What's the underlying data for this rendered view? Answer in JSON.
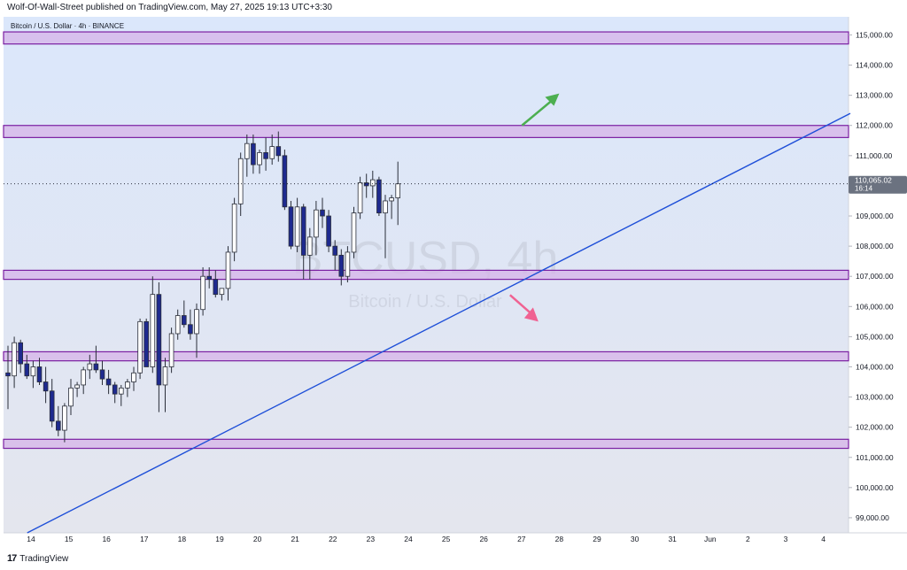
{
  "header": {
    "published_text": "Wolf-Of-Wall-Street published on TradingView.com, May 27, 2025 19:13 UTC+3:30"
  },
  "footer": {
    "logo_glyph": "17",
    "brand": "TradingView"
  },
  "colors": {
    "background_top": "#dbe7fb",
    "background_bottom": "#e4e6ee",
    "bull_body": "#ffffff",
    "bear_body": "#1e2a8f",
    "wick": "#2a2e39",
    "zone_fill": "#d6b3e8",
    "zone_border": "#7b1fa2",
    "trendline": "#1e4fd8",
    "arrow_up": "#4caf50",
    "arrow_down": "#f06292",
    "last_price_bg": "#6b7280"
  },
  "chart_data": {
    "type": "candlestick",
    "symbol_label": "Bitcoin / U.S. Dollar · 4h · BINANCE",
    "watermark_symbol": "BTCUSD, 4h",
    "watermark_name": "Bitcoin / U.S. Dollar",
    "ylim": [
      98500,
      115600
    ],
    "x_axis_ticks": [
      "14",
      "15",
      "16",
      "17",
      "18",
      "19",
      "20",
      "21",
      "22",
      "23",
      "24",
      "25",
      "26",
      "27",
      "28",
      "29",
      "30",
      "31",
      "Jun",
      "2",
      "3",
      "4"
    ],
    "y_axis_ticks": [
      "99,000.00",
      "100,000.00",
      "101,000.00",
      "102,000.00",
      "103,000.00",
      "104,000.00",
      "105,000.00",
      "106,000.00",
      "107,000.00",
      "108,000.00",
      "109,000.00",
      "110,000.00",
      "111,000.00",
      "112,000.00",
      "113,000.00",
      "114,000.00",
      "115,000.00"
    ],
    "last_price": {
      "value": 110065.02,
      "label": "110,065.02",
      "countdown": "16:14"
    },
    "zones": [
      {
        "low": 114700,
        "high": 115100
      },
      {
        "low": 111600,
        "high": 112000
      },
      {
        "low": 106900,
        "high": 107200
      },
      {
        "low": 104200,
        "high": 104500
      },
      {
        "low": 101300,
        "high": 101600
      }
    ],
    "trendline": {
      "start": {
        "x": "13.9",
        "y": 98500
      },
      "end": {
        "x": "4.8",
        "y": 112400
      }
    },
    "arrows": [
      {
        "direction": "up",
        "at_x": "28",
        "at_y": 113000
      },
      {
        "direction": "down",
        "at_x": "27.4",
        "at_y": 105500
      }
    ],
    "candles": [
      [
        103800,
        104700,
        102600,
        103700
      ],
      [
        103700,
        105000,
        103300,
        104800
      ],
      [
        104800,
        104900,
        103800,
        104100
      ],
      [
        104100,
        104400,
        103600,
        103700
      ],
      [
        103700,
        104200,
        103300,
        104000
      ],
      [
        104000,
        104300,
        103400,
        103500
      ],
      [
        103500,
        104000,
        102800,
        103200
      ],
      [
        103200,
        103600,
        102000,
        102200
      ],
      [
        102200,
        102700,
        101700,
        101900
      ],
      [
        101900,
        102800,
        101500,
        102700
      ],
      [
        102700,
        103600,
        102400,
        103300
      ],
      [
        103300,
        103500,
        103000,
        103400
      ],
      [
        103400,
        104000,
        103100,
        103900
      ],
      [
        103900,
        104400,
        103600,
        104100
      ],
      [
        104100,
        104700,
        103800,
        103900
      ],
      [
        103900,
        104200,
        103400,
        103600
      ],
      [
        103600,
        103900,
        103100,
        103400
      ],
      [
        103400,
        103500,
        102800,
        103100
      ],
      [
        103100,
        103400,
        102700,
        103300
      ],
      [
        103300,
        103600,
        103000,
        103500
      ],
      [
        103500,
        104000,
        103200,
        103800
      ],
      [
        103800,
        105600,
        103600,
        105500
      ],
      [
        105500,
        105600,
        104000,
        104000
      ],
      [
        104000,
        107000,
        103800,
        106400
      ],
      [
        106400,
        106800,
        102500,
        103400
      ],
      [
        103400,
        104300,
        102500,
        104000
      ],
      [
        104000,
        105300,
        103800,
        105100
      ],
      [
        105100,
        105900,
        104900,
        105700
      ],
      [
        105700,
        106200,
        105300,
        105400
      ],
      [
        105400,
        105900,
        104900,
        105100
      ],
      [
        105100,
        106100,
        104300,
        105900
      ],
      [
        105900,
        107300,
        105700,
        107000
      ],
      [
        107000,
        107300,
        106600,
        106900
      ],
      [
        106900,
        107200,
        106300,
        106400
      ],
      [
        106400,
        106600,
        106200,
        106600
      ],
      [
        106600,
        108000,
        106200,
        107800
      ],
      [
        107800,
        109600,
        107500,
        109400
      ],
      [
        109400,
        111100,
        109000,
        110900
      ],
      [
        110900,
        111700,
        110300,
        111400
      ],
      [
        111400,
        111700,
        110400,
        110700
      ],
      [
        110700,
        111200,
        110400,
        111100
      ],
      [
        111100,
        111600,
        110500,
        110900
      ],
      [
        110900,
        111700,
        110700,
        111300
      ],
      [
        111300,
        111800,
        110800,
        111000
      ],
      [
        111000,
        111200,
        109200,
        109300
      ],
      [
        109300,
        109500,
        107900,
        108000
      ],
      [
        108000,
        109600,
        107800,
        109300
      ],
      [
        109300,
        109400,
        106900,
        107700
      ],
      [
        107700,
        108600,
        106900,
        108300
      ],
      [
        108300,
        109500,
        107700,
        109200
      ],
      [
        109200,
        109600,
        108600,
        109000
      ],
      [
        109000,
        109200,
        107800,
        108000
      ],
      [
        108000,
        108200,
        107200,
        107700
      ],
      [
        107700,
        107900,
        106700,
        107000
      ],
      [
        107000,
        108000,
        106800,
        107800
      ],
      [
        107800,
        109300,
        107600,
        109100
      ],
      [
        109100,
        110300,
        108900,
        110100
      ],
      [
        110100,
        110400,
        109600,
        110000
      ],
      [
        110000,
        110500,
        109600,
        110200
      ],
      [
        110200,
        110300,
        109000,
        109100
      ],
      [
        109100,
        109700,
        107600,
        109500
      ],
      [
        109500,
        109700,
        108900,
        109600
      ],
      [
        109600,
        110800,
        108700,
        110065
      ]
    ]
  }
}
